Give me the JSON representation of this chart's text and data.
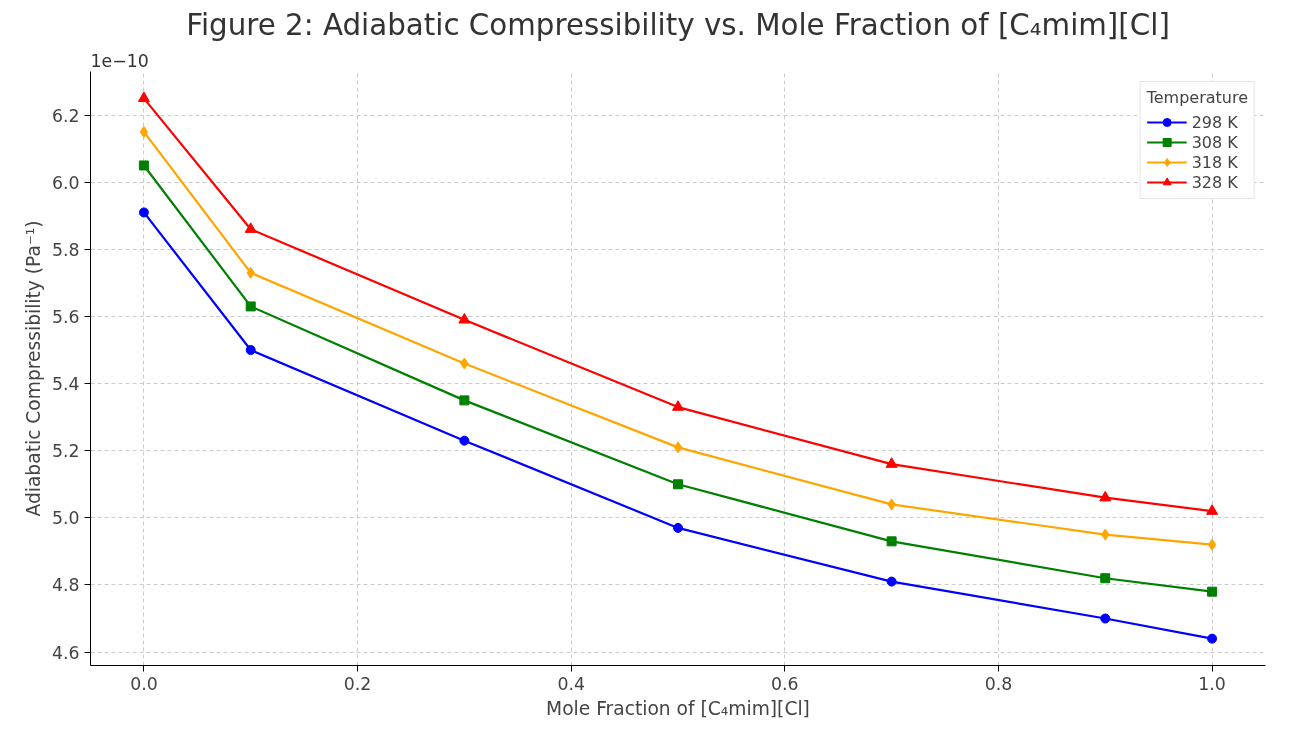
{
  "chart_data": {
    "type": "line",
    "title": "Figure 2: Adiabatic Compressibility vs. Mole Fraction of [C₄mim][Cl]",
    "xlabel": "Mole Fraction of [C₄mim][Cl]",
    "ylabel": "Adiabatic Compressibility (Pa⁻¹)",
    "legend_title": "Temperature",
    "annotations": [
      "1e−10"
    ],
    "x": [
      0.0,
      0.1,
      0.3,
      0.5,
      0.7,
      0.9,
      1.0
    ],
    "series": [
      {
        "name": "298 K",
        "color": "#0000ff",
        "marker": "circle",
        "values": [
          5.91,
          5.5,
          5.23,
          4.97,
          4.81,
          4.7,
          4.64
        ]
      },
      {
        "name": "308 K",
        "color": "#008000",
        "marker": "square",
        "values": [
          6.05,
          5.63,
          5.35,
          5.1,
          4.93,
          4.82,
          4.78
        ]
      },
      {
        "name": "318 K",
        "color": "#ffa500",
        "marker": "diamond",
        "values": [
          6.15,
          5.73,
          5.46,
          5.21,
          5.04,
          4.95,
          4.92
        ]
      },
      {
        "name": "328 K",
        "color": "#ff0000",
        "marker": "triangle",
        "values": [
          6.25,
          5.86,
          5.59,
          5.33,
          5.16,
          5.06,
          5.02
        ]
      }
    ],
    "xlim": [
      -0.05,
      1.05
    ],
    "ylim": [
      4.56,
      6.33
    ],
    "xticks": [
      {
        "value": 0.0,
        "label": "0.0"
      },
      0.2,
      0.4,
      0.6,
      0.8,
      {
        "value": 1.0,
        "label": "1.0"
      }
    ],
    "yticks": [
      4.6,
      4.8,
      {
        "value": 5.0,
        "label": "5.0"
      },
      5.2,
      5.4,
      5.6,
      5.8,
      {
        "value": 6.0,
        "label": "6.0"
      },
      6.2
    ],
    "grid": true,
    "legend": "top right",
    "line_style": "solid"
  }
}
